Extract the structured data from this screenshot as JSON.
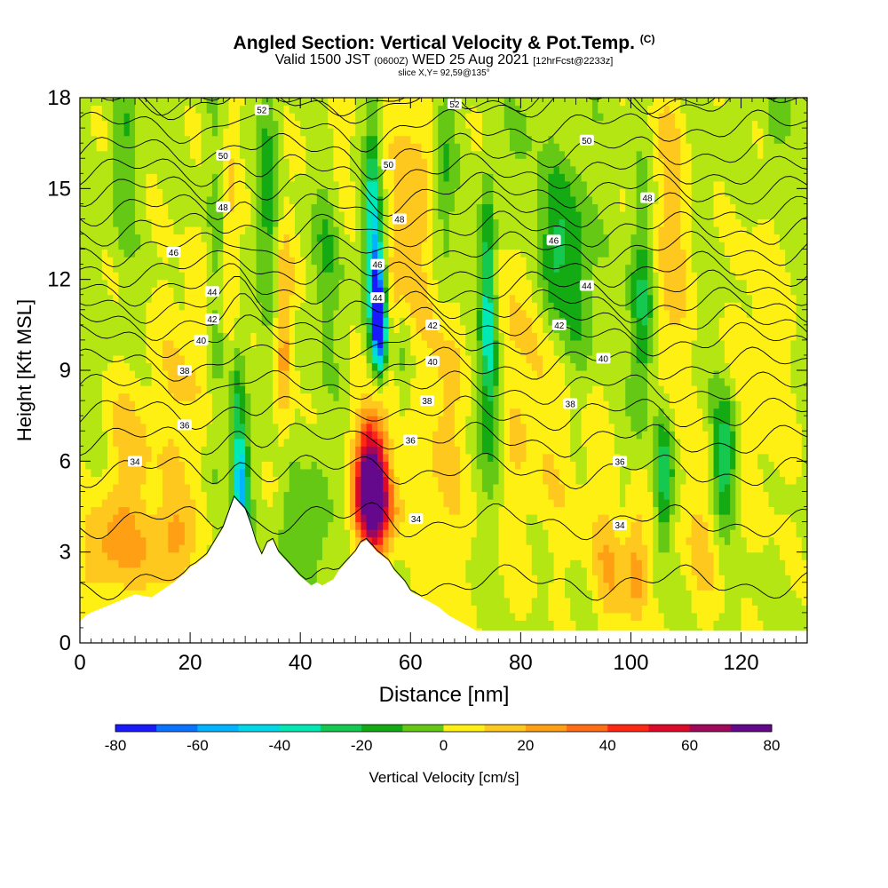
{
  "title": {
    "main": "Angled Section: Vertical Velocity & Pot.Temp.",
    "copyright": "(C)",
    "valid_prefix": "Valid 1500 JST",
    "valid_utc": "(0600Z)",
    "valid_date": "WED 25 Aug 2021",
    "forecast": "[12hrFcst@2233z]",
    "slice": "slice X,Y= 92,59@135°"
  },
  "chart_data": {
    "type": "heatmap",
    "xlabel": "Distance [nm]",
    "ylabel": "Height [Kft MSL]",
    "xlim": [
      0,
      132
    ],
    "ylim": [
      0,
      18
    ],
    "x_ticks": [
      0,
      20,
      40,
      60,
      80,
      100,
      120
    ],
    "y_ticks": [
      0,
      3,
      6,
      9,
      12,
      15,
      18
    ],
    "colorbar": {
      "label": "Vertical Velocity [cm/s]",
      "tick_labels": [
        "-80",
        "-60",
        "-40",
        "-20",
        "0",
        "20",
        "40",
        "60",
        "80"
      ],
      "levels": [
        -80,
        -70,
        -60,
        -50,
        -40,
        -30,
        -20,
        -10,
        0,
        10,
        20,
        30,
        40,
        50,
        60,
        70,
        80
      ],
      "colors": [
        "#1a1aff",
        "#0a73ff",
        "#00b4ff",
        "#00d8e8",
        "#00e8b4",
        "#14c850",
        "#14aa14",
        "#64c814",
        "#b4e614",
        "#fff014",
        "#ffc81e",
        "#ffa014",
        "#ff6e14",
        "#ff2814",
        "#dc0a28",
        "#a0085a",
        "#64088c"
      ]
    },
    "terrain": {
      "distance": [
        0,
        1,
        2,
        6,
        10,
        13,
        17,
        19,
        20,
        21,
        23,
        24,
        26,
        27,
        28,
        30,
        31,
        32,
        33,
        34,
        35,
        36,
        37,
        38,
        40,
        42,
        43,
        44,
        45,
        46,
        47,
        48,
        49,
        50,
        51,
        52,
        53,
        54,
        56,
        57,
        59,
        60,
        62,
        65,
        67,
        70,
        72,
        132
      ],
      "height_kft": [
        0.7,
        0.9,
        1.0,
        1.3,
        1.6,
        1.5,
        2.0,
        2.3,
        2.5,
        2.6,
        2.9,
        3.2,
        3.8,
        4.3,
        4.8,
        4.4,
        3.9,
        3.3,
        2.9,
        3.3,
        3.4,
        3.0,
        2.8,
        2.6,
        2.2,
        1.9,
        2.0,
        1.9,
        2.0,
        2.1,
        2.4,
        2.6,
        2.8,
        3.0,
        3.3,
        3.4,
        3.2,
        3.0,
        2.7,
        2.4,
        2.0,
        1.7,
        1.5,
        1.2,
        0.9,
        0.6,
        0.4,
        0.4
      ]
    },
    "updrafts": [
      {
        "x": 53,
        "y": 5.5,
        "sx": 2.0,
        "sy": 1.6,
        "w": 82
      },
      {
        "x": 54,
        "y": 4.5,
        "sx": 3.0,
        "sy": 1.0,
        "w": 38
      },
      {
        "x": 37,
        "y": 10.5,
        "sx": 1.2,
        "sy": 2.5,
        "w": 32
      },
      {
        "x": 27,
        "y": 13.5,
        "sx": 1.3,
        "sy": 4.0,
        "w": 20
      },
      {
        "x": 9,
        "y": 6.2,
        "sx": 3.5,
        "sy": 2.0,
        "w": 18
      },
      {
        "x": 5,
        "y": 3.0,
        "sx": 4.0,
        "sy": 1.2,
        "w": 24
      },
      {
        "x": 16,
        "y": 3.2,
        "sx": 4.0,
        "sy": 1.0,
        "w": 22
      },
      {
        "x": 20,
        "y": 8.0,
        "sx": 4.5,
        "sy": 3.5,
        "w": 15
      },
      {
        "x": 60,
        "y": 14.0,
        "sx": 3.0,
        "sy": 3.5,
        "w": 22
      },
      {
        "x": 66,
        "y": 7.5,
        "sx": 3.0,
        "sy": 5.0,
        "w": 18
      },
      {
        "x": 80,
        "y": 10.0,
        "sx": 3.5,
        "sy": 5.0,
        "w": 18
      },
      {
        "x": 90,
        "y": 7.0,
        "sx": 4.0,
        "sy": 3.0,
        "w": 15
      },
      {
        "x": 96,
        "y": 2.5,
        "sx": 2.5,
        "sy": 1.5,
        "w": 20
      },
      {
        "x": 101,
        "y": 2.5,
        "sx": 1.5,
        "sy": 1.5,
        "w": 28
      },
      {
        "x": 107,
        "y": 13.0,
        "sx": 2.5,
        "sy": 4.5,
        "w": 20
      },
      {
        "x": 113,
        "y": 3.5,
        "sx": 3.0,
        "sy": 2.0,
        "w": 15
      },
      {
        "x": 124,
        "y": 9.0,
        "sx": 4.0,
        "sy": 4.0,
        "w": 12
      },
      {
        "x": 46,
        "y": 16.5,
        "sx": 3.0,
        "sy": 2.0,
        "w": 14
      }
    ],
    "downdrafts": [
      {
        "x": 54,
        "y": 11.5,
        "sx": 0.9,
        "sy": 1.5,
        "w": -70
      },
      {
        "x": 54.5,
        "y": 10.2,
        "sx": 0.8,
        "sy": 0.8,
        "w": -55
      },
      {
        "x": 53,
        "y": 14.0,
        "sx": 1.0,
        "sy": 2.5,
        "w": -40
      },
      {
        "x": 29.5,
        "y": 5.0,
        "sx": 0.9,
        "sy": 1.3,
        "w": -50
      },
      {
        "x": 28.5,
        "y": 7.0,
        "sx": 0.9,
        "sy": 2.0,
        "w": -30
      },
      {
        "x": 74,
        "y": 11.5,
        "sx": 1.0,
        "sy": 2.5,
        "w": -45
      },
      {
        "x": 75,
        "y": 8.0,
        "sx": 1.5,
        "sy": 2.0,
        "w": -22
      },
      {
        "x": 8,
        "y": 16.0,
        "sx": 1.5,
        "sy": 2.0,
        "w": -15
      },
      {
        "x": 25,
        "y": 10.0,
        "sx": 1.5,
        "sy": 5.0,
        "w": -20
      },
      {
        "x": 45,
        "y": 14.0,
        "sx": 2.0,
        "sy": 2.5,
        "w": -18
      },
      {
        "x": 34,
        "y": 14.5,
        "sx": 1.5,
        "sy": 3.0,
        "w": -20
      },
      {
        "x": 66,
        "y": 14.5,
        "sx": 1.5,
        "sy": 3.0,
        "w": -25
      },
      {
        "x": 86,
        "y": 13.0,
        "sx": 3.0,
        "sy": 2.0,
        "w": -30
      },
      {
        "x": 91,
        "y": 10.5,
        "sx": 2.0,
        "sy": 3.0,
        "w": -20
      },
      {
        "x": 102,
        "y": 11.0,
        "sx": 1.5,
        "sy": 2.5,
        "w": -32
      },
      {
        "x": 106,
        "y": 5.5,
        "sx": 1.2,
        "sy": 1.5,
        "w": -38
      },
      {
        "x": 117,
        "y": 6.0,
        "sx": 1.5,
        "sy": 1.5,
        "w": -40
      },
      {
        "x": 43,
        "y": 4.0,
        "sx": 1.5,
        "sy": 1.5,
        "w": -18
      },
      {
        "x": 38,
        "y": 3.8,
        "sx": 1.5,
        "sy": 1.2,
        "w": -15
      },
      {
        "x": 80,
        "y": 16.5,
        "sx": 2.0,
        "sy": 2.0,
        "w": -15
      },
      {
        "x": 126,
        "y": 17.0,
        "sx": 1.5,
        "sy": 1.5,
        "w": -12
      },
      {
        "x": 59,
        "y": 9.5,
        "sx": 1.0,
        "sy": 1.5,
        "w": -18
      }
    ],
    "theta_levels": [
      33,
      34,
      35,
      36,
      37,
      38,
      39,
      40,
      41,
      42,
      43,
      44,
      45,
      46,
      47,
      48,
      49,
      50,
      51,
      52,
      53
    ],
    "theta_profile": {
      "height_kft": [
        0,
        2,
        4,
        6,
        8,
        10,
        12,
        14,
        16,
        18
      ],
      "theta": [
        32.5,
        33.0,
        34.0,
        35.2,
        37.5,
        40.0,
        43.5,
        46.5,
        49.7,
        52.2
      ]
    },
    "theta_labels": [
      {
        "text": "34",
        "x": 10,
        "y": 6.0
      },
      {
        "text": "36",
        "x": 19,
        "y": 7.2
      },
      {
        "text": "38",
        "x": 19,
        "y": 9.0
      },
      {
        "text": "40",
        "x": 22,
        "y": 10.0
      },
      {
        "text": "42",
        "x": 24,
        "y": 10.7
      },
      {
        "text": "44",
        "x": 24,
        "y": 11.6
      },
      {
        "text": "46",
        "x": 17,
        "y": 12.9
      },
      {
        "text": "48",
        "x": 26,
        "y": 14.4
      },
      {
        "text": "50",
        "x": 26,
        "y": 16.1
      },
      {
        "text": "52",
        "x": 33,
        "y": 17.6
      },
      {
        "text": "50",
        "x": 56,
        "y": 15.8
      },
      {
        "text": "48",
        "x": 58,
        "y": 14.0
      },
      {
        "text": "46",
        "x": 54,
        "y": 12.5
      },
      {
        "text": "44",
        "x": 54,
        "y": 11.4
      },
      {
        "text": "42",
        "x": 64,
        "y": 10.5
      },
      {
        "text": "40",
        "x": 64,
        "y": 9.3
      },
      {
        "text": "38",
        "x": 63,
        "y": 8.0
      },
      {
        "text": "36",
        "x": 60,
        "y": 6.7
      },
      {
        "text": "34",
        "x": 61,
        "y": 4.1
      },
      {
        "text": "52",
        "x": 68,
        "y": 17.8
      },
      {
        "text": "50",
        "x": 92,
        "y": 16.6
      },
      {
        "text": "48",
        "x": 103,
        "y": 14.7
      },
      {
        "text": "46",
        "x": 86,
        "y": 13.3
      },
      {
        "text": "44",
        "x": 92,
        "y": 11.8
      },
      {
        "text": "42",
        "x": 87,
        "y": 10.5
      },
      {
        "text": "40",
        "x": 95,
        "y": 9.4
      },
      {
        "text": "38",
        "x": 89,
        "y": 7.9
      },
      {
        "text": "36",
        "x": 98,
        "y": 6.0
      },
      {
        "text": "34",
        "x": 98,
        "y": 3.9
      }
    ]
  }
}
